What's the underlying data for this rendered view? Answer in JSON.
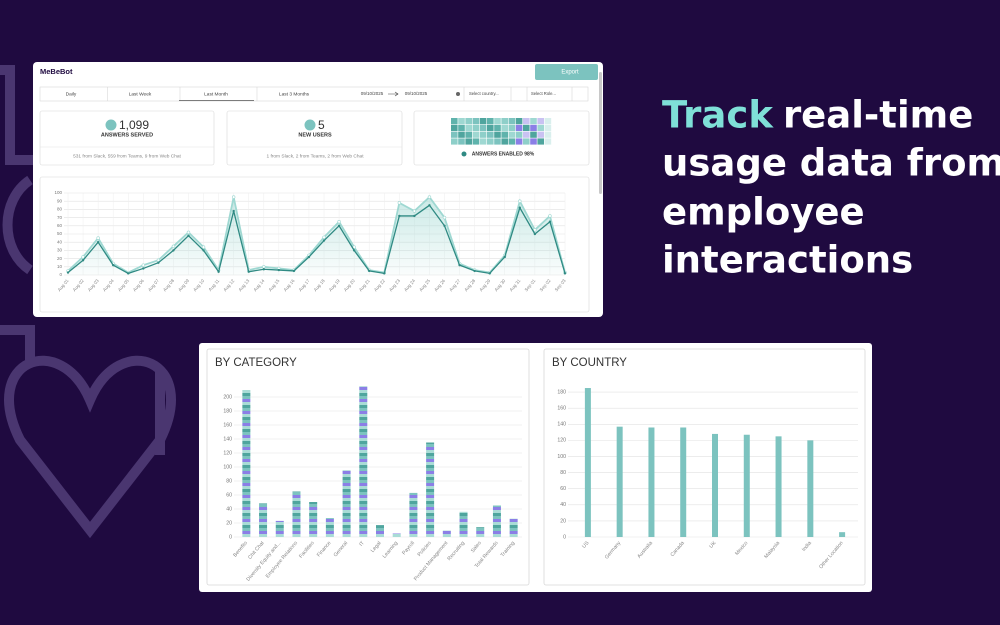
{
  "headline": {
    "highlight": "Track",
    "lines": [
      "real-time",
      "usage data from",
      "employee",
      "interactions"
    ]
  },
  "dashboard": {
    "logo": "MeBeBot",
    "export": "Export",
    "tabs": [
      "Daily",
      "Last Week",
      "Last Month",
      "Last 3 Months"
    ],
    "date_from": "09/10/2025",
    "date_to": "09/10/2025",
    "country_select": "Select country...",
    "role_select": "Select Role...",
    "cards": [
      {
        "value": "1,099",
        "label": "ANSWERS SERVED",
        "detail": "531 from Slack, 559 from Teams, 9 from Web Chat"
      },
      {
        "value": "5",
        "label": "NEW USERS",
        "detail": "1 from Slack, 2 from Teams, 2 from Web Chat"
      },
      {
        "label": "ANSWERS ENABLED 98%"
      }
    ]
  },
  "chart_data": [
    {
      "type": "line",
      "categories": [
        "Aug 01",
        "Aug 02",
        "Aug 03",
        "Aug 04",
        "Aug 05",
        "Aug 06",
        "Aug 07",
        "Aug 08",
        "Aug 09",
        "Aug 10",
        "Aug 11",
        "Aug 12",
        "Aug 13",
        "Aug 14",
        "Aug 15",
        "Aug 16",
        "Aug 17",
        "Aug 18",
        "Aug 19",
        "Aug 20",
        "Aug 21",
        "Aug 22",
        "Aug 23",
        "Aug 24",
        "Aug 25",
        "Aug 26",
        "Aug 27",
        "Aug 28",
        "Aug 29",
        "Aug 30",
        "Aug 31",
        "Sep 01",
        "Sep 02",
        "Sep 03"
      ],
      "series": [
        {
          "color": "#9fd8d2",
          "values": [
            5,
            22,
            45,
            14,
            3,
            12,
            18,
            35,
            52,
            34,
            6,
            95,
            6,
            10,
            8,
            6,
            24,
            46,
            65,
            34,
            6,
            3,
            88,
            78,
            95,
            70,
            14,
            6,
            3,
            24,
            90,
            55,
            72,
            3
          ]
        },
        {
          "color": "#2f8a83",
          "values": [
            3,
            18,
            40,
            12,
            2,
            8,
            15,
            30,
            48,
            30,
            4,
            78,
            4,
            7,
            6,
            5,
            22,
            42,
            60,
            30,
            5,
            2,
            72,
            72,
            85,
            60,
            12,
            5,
            2,
            22,
            82,
            50,
            65,
            2
          ]
        }
      ],
      "ylim": [
        0,
        100
      ],
      "yticks": [
        0,
        10,
        20,
        30,
        40,
        50,
        60,
        70,
        80,
        90,
        100
      ],
      "grid": true
    },
    {
      "type": "bar",
      "title": "BY CATEGORY",
      "categories": [
        "Benefits",
        "Chit Chat",
        "Diversity Equity and...",
        "Employee Relations",
        "Facilities",
        "Finance",
        "General",
        "IT",
        "Legal",
        "Learning",
        "Payroll",
        "Policies",
        "Product Management",
        "Recruiting",
        "Sales",
        "Total Rewards",
        "Training"
      ],
      "values": [
        210,
        48,
        23,
        65,
        50,
        27,
        95,
        215,
        17,
        5,
        63,
        135,
        9,
        36,
        14,
        45,
        26
      ],
      "color": "striped",
      "ylim": [
        0,
        220
      ],
      "yticks": [
        0,
        20,
        40,
        60,
        80,
        100,
        120,
        140,
        160,
        180,
        200
      ],
      "grid": true
    },
    {
      "type": "bar",
      "title": "BY COUNTRY",
      "categories": [
        "US",
        "Germany",
        "Australia",
        "Canada",
        "UK",
        "Mexico",
        "Malaysia",
        "India",
        "Other Location"
      ],
      "values": [
        185,
        137,
        136,
        136,
        128,
        127,
        125,
        120,
        6
      ],
      "color": "#7cc3bf",
      "ylim": [
        0,
        190
      ],
      "yticks": [
        0,
        20,
        40,
        60,
        80,
        100,
        120,
        140,
        160,
        180
      ],
      "grid": true
    }
  ]
}
